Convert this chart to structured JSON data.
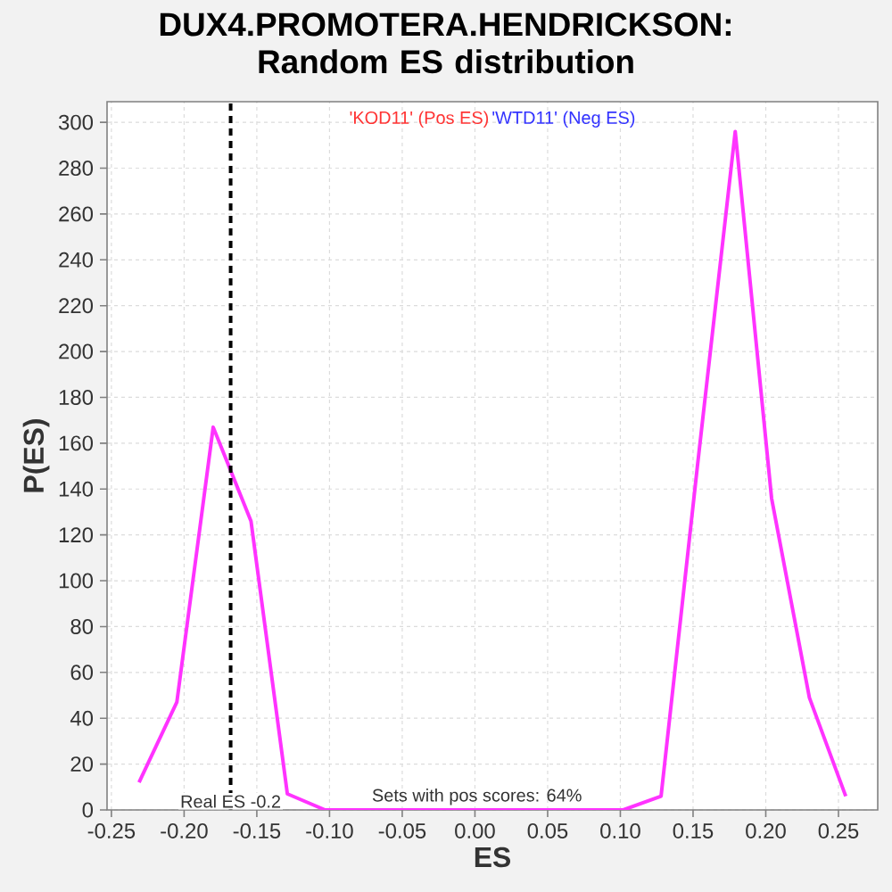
{
  "chart_data": {
    "type": "line",
    "title": "DUX4.PROMOTERA.HENDRICKSON: Random ES distribution",
    "xlabel": "ES",
    "ylabel": "P(ES)",
    "annotations": [
      "'KOD11' (Pos ES)",
      "'WTD11' (Neg ES)",
      "Sets with pos scores: 64%"
    ],
    "x": [
      -0.231,
      -0.205,
      -0.18,
      -0.154,
      -0.129,
      -0.103,
      -0.077,
      -0.052,
      -0.026,
      0.0,
      0.025,
      0.051,
      0.076,
      0.102,
      0.128,
      0.153,
      0.179,
      0.204,
      0.23,
      0.255
    ],
    "series": [
      {
        "color": "#ff33ff",
        "values": [
          12,
          47,
          167,
          126,
          7,
          0,
          0,
          0,
          0,
          0,
          0,
          0,
          0,
          0,
          6,
          150,
          296,
          136,
          49,
          6
        ]
      }
    ],
    "xlim": [
      -0.253,
      0.277
    ],
    "ylim": [
      0,
      309
    ],
    "xticks": [
      {
        "value": -0.25,
        "label": "-0.25"
      },
      {
        "value": -0.2,
        "label": "-0.20"
      },
      {
        "value": -0.15,
        "label": "-0.15"
      },
      {
        "value": -0.1,
        "label": "-0.10"
      },
      {
        "value": -0.05,
        "label": "-0.05"
      },
      {
        "value": 0,
        "label": "0.00"
      },
      {
        "value": 0.05,
        "label": "0.05"
      },
      {
        "value": 0.1,
        "label": "0.10"
      },
      {
        "value": 0.15,
        "label": "0.15"
      },
      {
        "value": 0.2,
        "label": "0.20"
      },
      {
        "value": 0.25,
        "label": "0.25"
      }
    ],
    "yticks": [
      0,
      20,
      40,
      60,
      80,
      100,
      120,
      140,
      160,
      180,
      200,
      220,
      240,
      260,
      280,
      300
    ],
    "ref_lines": [
      {
        "axis": "x",
        "value": -0.168,
        "label": "Real ES -0.2",
        "color": "#000000",
        "line_style": "dashed"
      }
    ],
    "grid": true
  }
}
